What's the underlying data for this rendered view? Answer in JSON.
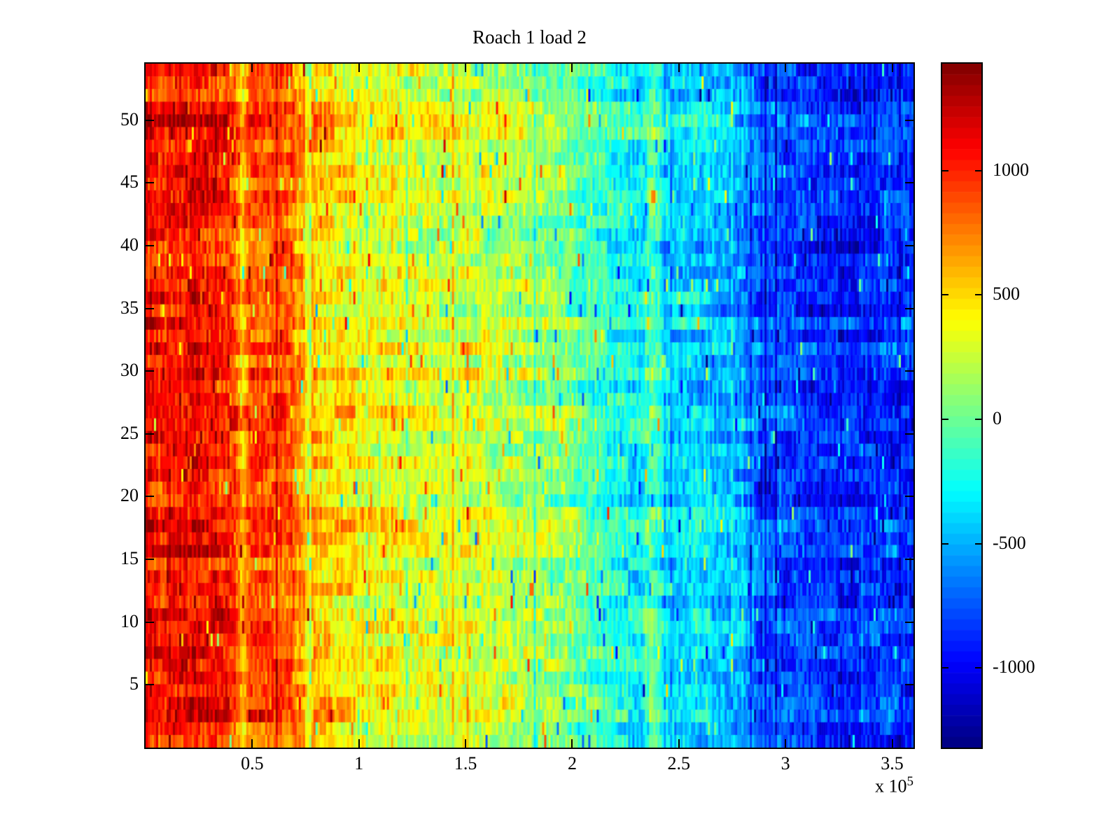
{
  "title": "Roach 1 load 2",
  "axis": {
    "x_scale_prefix": "x 10",
    "x_scale_exp": "5"
  },
  "colors": {
    "background": "#ffffff",
    "axis_color": "#000000",
    "colormap_top": "#800000",
    "colormap_bottom": "#000080"
  },
  "chart_data": {
    "type": "heatmap",
    "title": "Roach 1 load 2",
    "colormap": "jet",
    "colormap_levels": 64,
    "xlim": [
      0,
      360000
    ],
    "ylim": [
      0,
      54.5
    ],
    "rows": 54,
    "cols": 366,
    "clim": [
      -1320,
      1430
    ],
    "x_ticks": [
      {
        "value": 50000,
        "label": "0.5"
      },
      {
        "value": 100000,
        "label": "1"
      },
      {
        "value": 150000,
        "label": "1.5"
      },
      {
        "value": 200000,
        "label": "2"
      },
      {
        "value": 250000,
        "label": "2.5"
      },
      {
        "value": 300000,
        "label": "3"
      },
      {
        "value": 350000,
        "label": "3.5"
      }
    ],
    "x_scale_label": "x 10^5",
    "y_ticks": [
      {
        "value": 5,
        "label": "5"
      },
      {
        "value": 10,
        "label": "10"
      },
      {
        "value": 15,
        "label": "15"
      },
      {
        "value": 20,
        "label": "20"
      },
      {
        "value": 25,
        "label": "25"
      },
      {
        "value": 30,
        "label": "30"
      },
      {
        "value": 35,
        "label": "35"
      },
      {
        "value": 40,
        "label": "40"
      },
      {
        "value": 45,
        "label": "45"
      },
      {
        "value": 50,
        "label": "50"
      }
    ],
    "colorbar_ticks": [
      {
        "value": 1000,
        "label": "1000"
      },
      {
        "value": 500,
        "label": "500"
      },
      {
        "value": 0,
        "label": "0"
      },
      {
        "value": -500,
        "label": "-500"
      },
      {
        "value": -1000,
        "label": "-1000"
      }
    ],
    "value_profile_x_fraction_vs_value": [
      [
        0.0,
        1150
      ],
      [
        0.03,
        1060
      ],
      [
        0.07,
        1120
      ],
      [
        0.1,
        1010
      ],
      [
        0.116,
        920
      ],
      [
        0.125,
        560
      ],
      [
        0.135,
        920
      ],
      [
        0.16,
        900
      ],
      [
        0.178,
        870
      ],
      [
        0.21,
        620
      ],
      [
        0.25,
        480
      ],
      [
        0.3,
        380
      ],
      [
        0.36,
        340
      ],
      [
        0.43,
        300
      ],
      [
        0.5,
        200
      ],
      [
        0.55,
        80
      ],
      [
        0.6,
        -140
      ],
      [
        0.645,
        -280
      ],
      [
        0.661,
        40
      ],
      [
        0.677,
        -320
      ],
      [
        0.72,
        -380
      ],
      [
        0.78,
        -470
      ],
      [
        0.8,
        -700
      ],
      [
        0.86,
        -800
      ],
      [
        0.91,
        -880
      ],
      [
        0.96,
        -840
      ],
      [
        1.0,
        -820
      ]
    ],
    "noise": {
      "row": 130,
      "patch": 160,
      "patch_cols": 10,
      "cell": 190,
      "col_spike_prob": 0.09,
      "spike_prob": 0.03
    },
    "seed": 1337
  }
}
